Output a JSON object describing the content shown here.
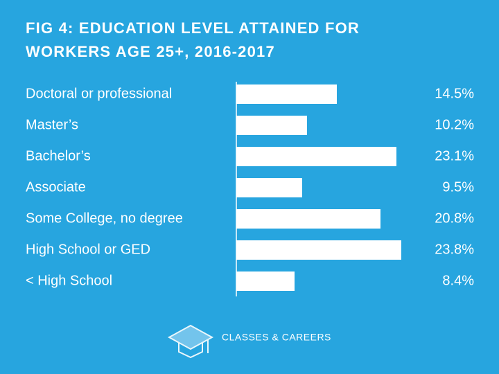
{
  "chart_data": {
    "type": "bar",
    "orientation": "horizontal",
    "title": "FIG 4: EDUCATION LEVEL ATTAINED FOR WORKERS AGE 25+, 2016-2017",
    "categories": [
      "Doctoral or professional",
      "Master’s",
      "Bachelor’s",
      "Associate",
      "Some College, no degree",
      "High School or GED",
      "< High School"
    ],
    "values": [
      14.5,
      10.2,
      23.1,
      9.5,
      20.8,
      23.8,
      8.4
    ],
    "value_labels": [
      "14.5%",
      "10.2%",
      "23.1%",
      "9.5%",
      "20.8%",
      "23.8%",
      "8.4%"
    ],
    "color": "#ffffff"
  },
  "footer": {
    "brand": "CLASSES & CAREERS"
  }
}
